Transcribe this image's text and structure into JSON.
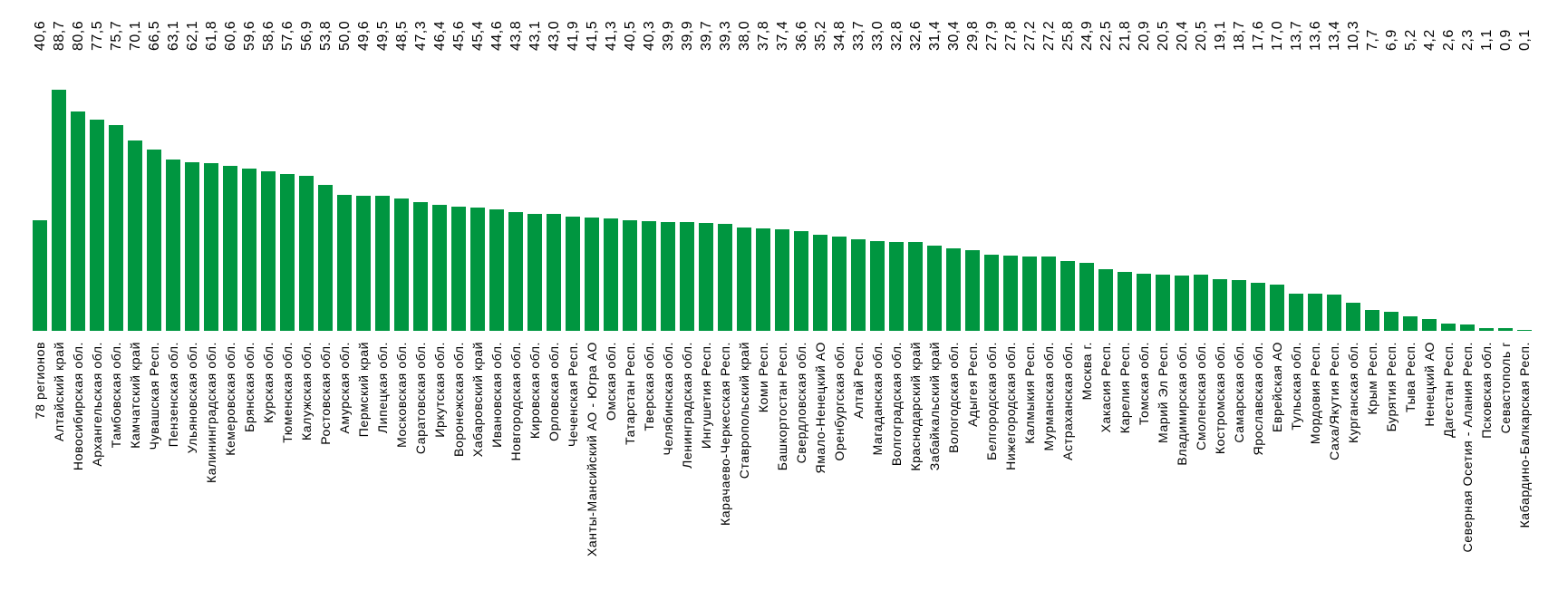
{
  "chart_data": {
    "type": "bar",
    "title": "",
    "xlabel": "",
    "ylabel": "",
    "ylim": [
      0,
      100
    ],
    "grid": false,
    "legend": "none",
    "decimal_separator": ",",
    "bar_color": "#009640",
    "label_rotation_degrees": -90,
    "categories": [
      "78 регионов",
      "Алтайский край",
      "Новосибирская обл.",
      "Архангельская обл.",
      "Тамбовская обл.",
      "Камчатский край",
      "Чувашская Респ.",
      "Пензенская обл.",
      "Ульяновская обл.",
      "Калининградская обл.",
      "Кемеровская обл.",
      "Брянская обл.",
      "Курская обл.",
      "Тюменская обл.",
      "Калужская обл.",
      "Ростовская обл.",
      "Амурская обл.",
      "Пермский край",
      "Липецкая обл.",
      "Московская обл.",
      "Саратовская обл.",
      "Иркутская обл.",
      "Воронежская обл.",
      "Хабаровский край",
      "Ивановская обл.",
      "Новгородская обл.",
      "Кировская обл.",
      "Орловская обл.",
      "Чеченская Респ.",
      "Ханты-Мансийский АО - Югра АО",
      "Омская обл.",
      "Татарстан Респ.",
      "Тверская обл.",
      "Челябинская обл.",
      "Ленинградская обл.",
      "Ингушетия Респ.",
      "Карачаево-Черкесская Респ.",
      "Ставропольский край",
      "Коми Респ.",
      "Башкортостан Респ.",
      "Свердловская обл.",
      "Ямало-Ненецкий АО",
      "Оренбургская обл.",
      "Алтай Респ.",
      "Магаданская обл.",
      "Волгоградская обл.",
      "Краснодарский край",
      "Забайкальский край",
      "Вологодская обл.",
      "Адыгея Респ.",
      "Белгородская обл.",
      "Нижегородская обл.",
      "Калмыкия Респ.",
      "Мурманская обл.",
      "Астраханская обл.",
      "Москва г.",
      "Хакасия Респ.",
      "Карелия Респ.",
      "Томская обл.",
      "Марий Эл Респ.",
      "Владимирская обл.",
      "Смоленская обл.",
      "Костромская обл.",
      "Самарская обл.",
      "Ярославская обл.",
      "Еврейская АО",
      "Тульская обл.",
      "Мордовия Респ.",
      "Саха/Якутия Респ.",
      "Курганская обл.",
      "Крым Респ.",
      "Бурятия Респ.",
      "Тыва Респ.",
      "Ненецкий АО",
      "Дагестан Респ.",
      "Северная Осетия - Алания Респ.",
      "Псковская обл.",
      "Севастополь г",
      "Кабардино-Балкарская Респ."
    ],
    "values": [
      40.6,
      88.7,
      80.6,
      77.5,
      75.7,
      70.1,
      66.5,
      63.1,
      62.1,
      61.8,
      60.6,
      59.6,
      58.6,
      57.6,
      56.9,
      53.8,
      50.0,
      49.6,
      49.5,
      48.5,
      47.3,
      46.4,
      45.6,
      45.4,
      44.6,
      43.8,
      43.1,
      43.0,
      41.9,
      41.5,
      41.3,
      40.5,
      40.3,
      39.9,
      39.9,
      39.7,
      39.3,
      38.0,
      37.8,
      37.4,
      36.6,
      35.2,
      34.8,
      33.7,
      33.0,
      32.8,
      32.6,
      31.4,
      30.4,
      29.8,
      27.9,
      27.8,
      27.2,
      27.2,
      25.8,
      24.9,
      22.5,
      21.8,
      20.9,
      20.5,
      20.4,
      20.5,
      19.1,
      18.7,
      17.6,
      17.0,
      13.7,
      13.6,
      13.4,
      10.3,
      7.7,
      6.9,
      5.2,
      4.2,
      2.6,
      2.3,
      1.1,
      0.9,
      0.1
    ],
    "value_labels": [
      "40,6",
      "88,7",
      "80,6",
      "77,5",
      "75,7",
      "70,1",
      "66,5",
      "63,1",
      "62,1",
      "61,8",
      "60,6",
      "59,6",
      "58,6",
      "57,6",
      "56,9",
      "53,8",
      "50,0",
      "49,6",
      "49,5",
      "48,5",
      "47,3",
      "46,4",
      "45,6",
      "45,4",
      "44,6",
      "43,8",
      "43,1",
      "43,0",
      "41,9",
      "41,5",
      "41,3",
      "40,5",
      "40,3",
      "39,9",
      "39,9",
      "39,7",
      "39,3",
      "38,0",
      "37,8",
      "37,4",
      "36,6",
      "35,2",
      "34,8",
      "33,7",
      "33,0",
      "32,8",
      "32,6",
      "31,4",
      "30,4",
      "29,8",
      "27,9",
      "27,8",
      "27,2",
      "27,2",
      "25,8",
      "24,9",
      "22,5",
      "21,8",
      "20,9",
      "20,5",
      "20,4",
      "20,5",
      "19,1",
      "18,7",
      "17,6",
      "17,0",
      "13,7",
      "13,6",
      "13,4",
      "10,3",
      "7,7",
      "6,9",
      "5,2",
      "4,2",
      "2,6",
      "2,3",
      "1,1",
      "0,9",
      "0,1"
    ]
  }
}
